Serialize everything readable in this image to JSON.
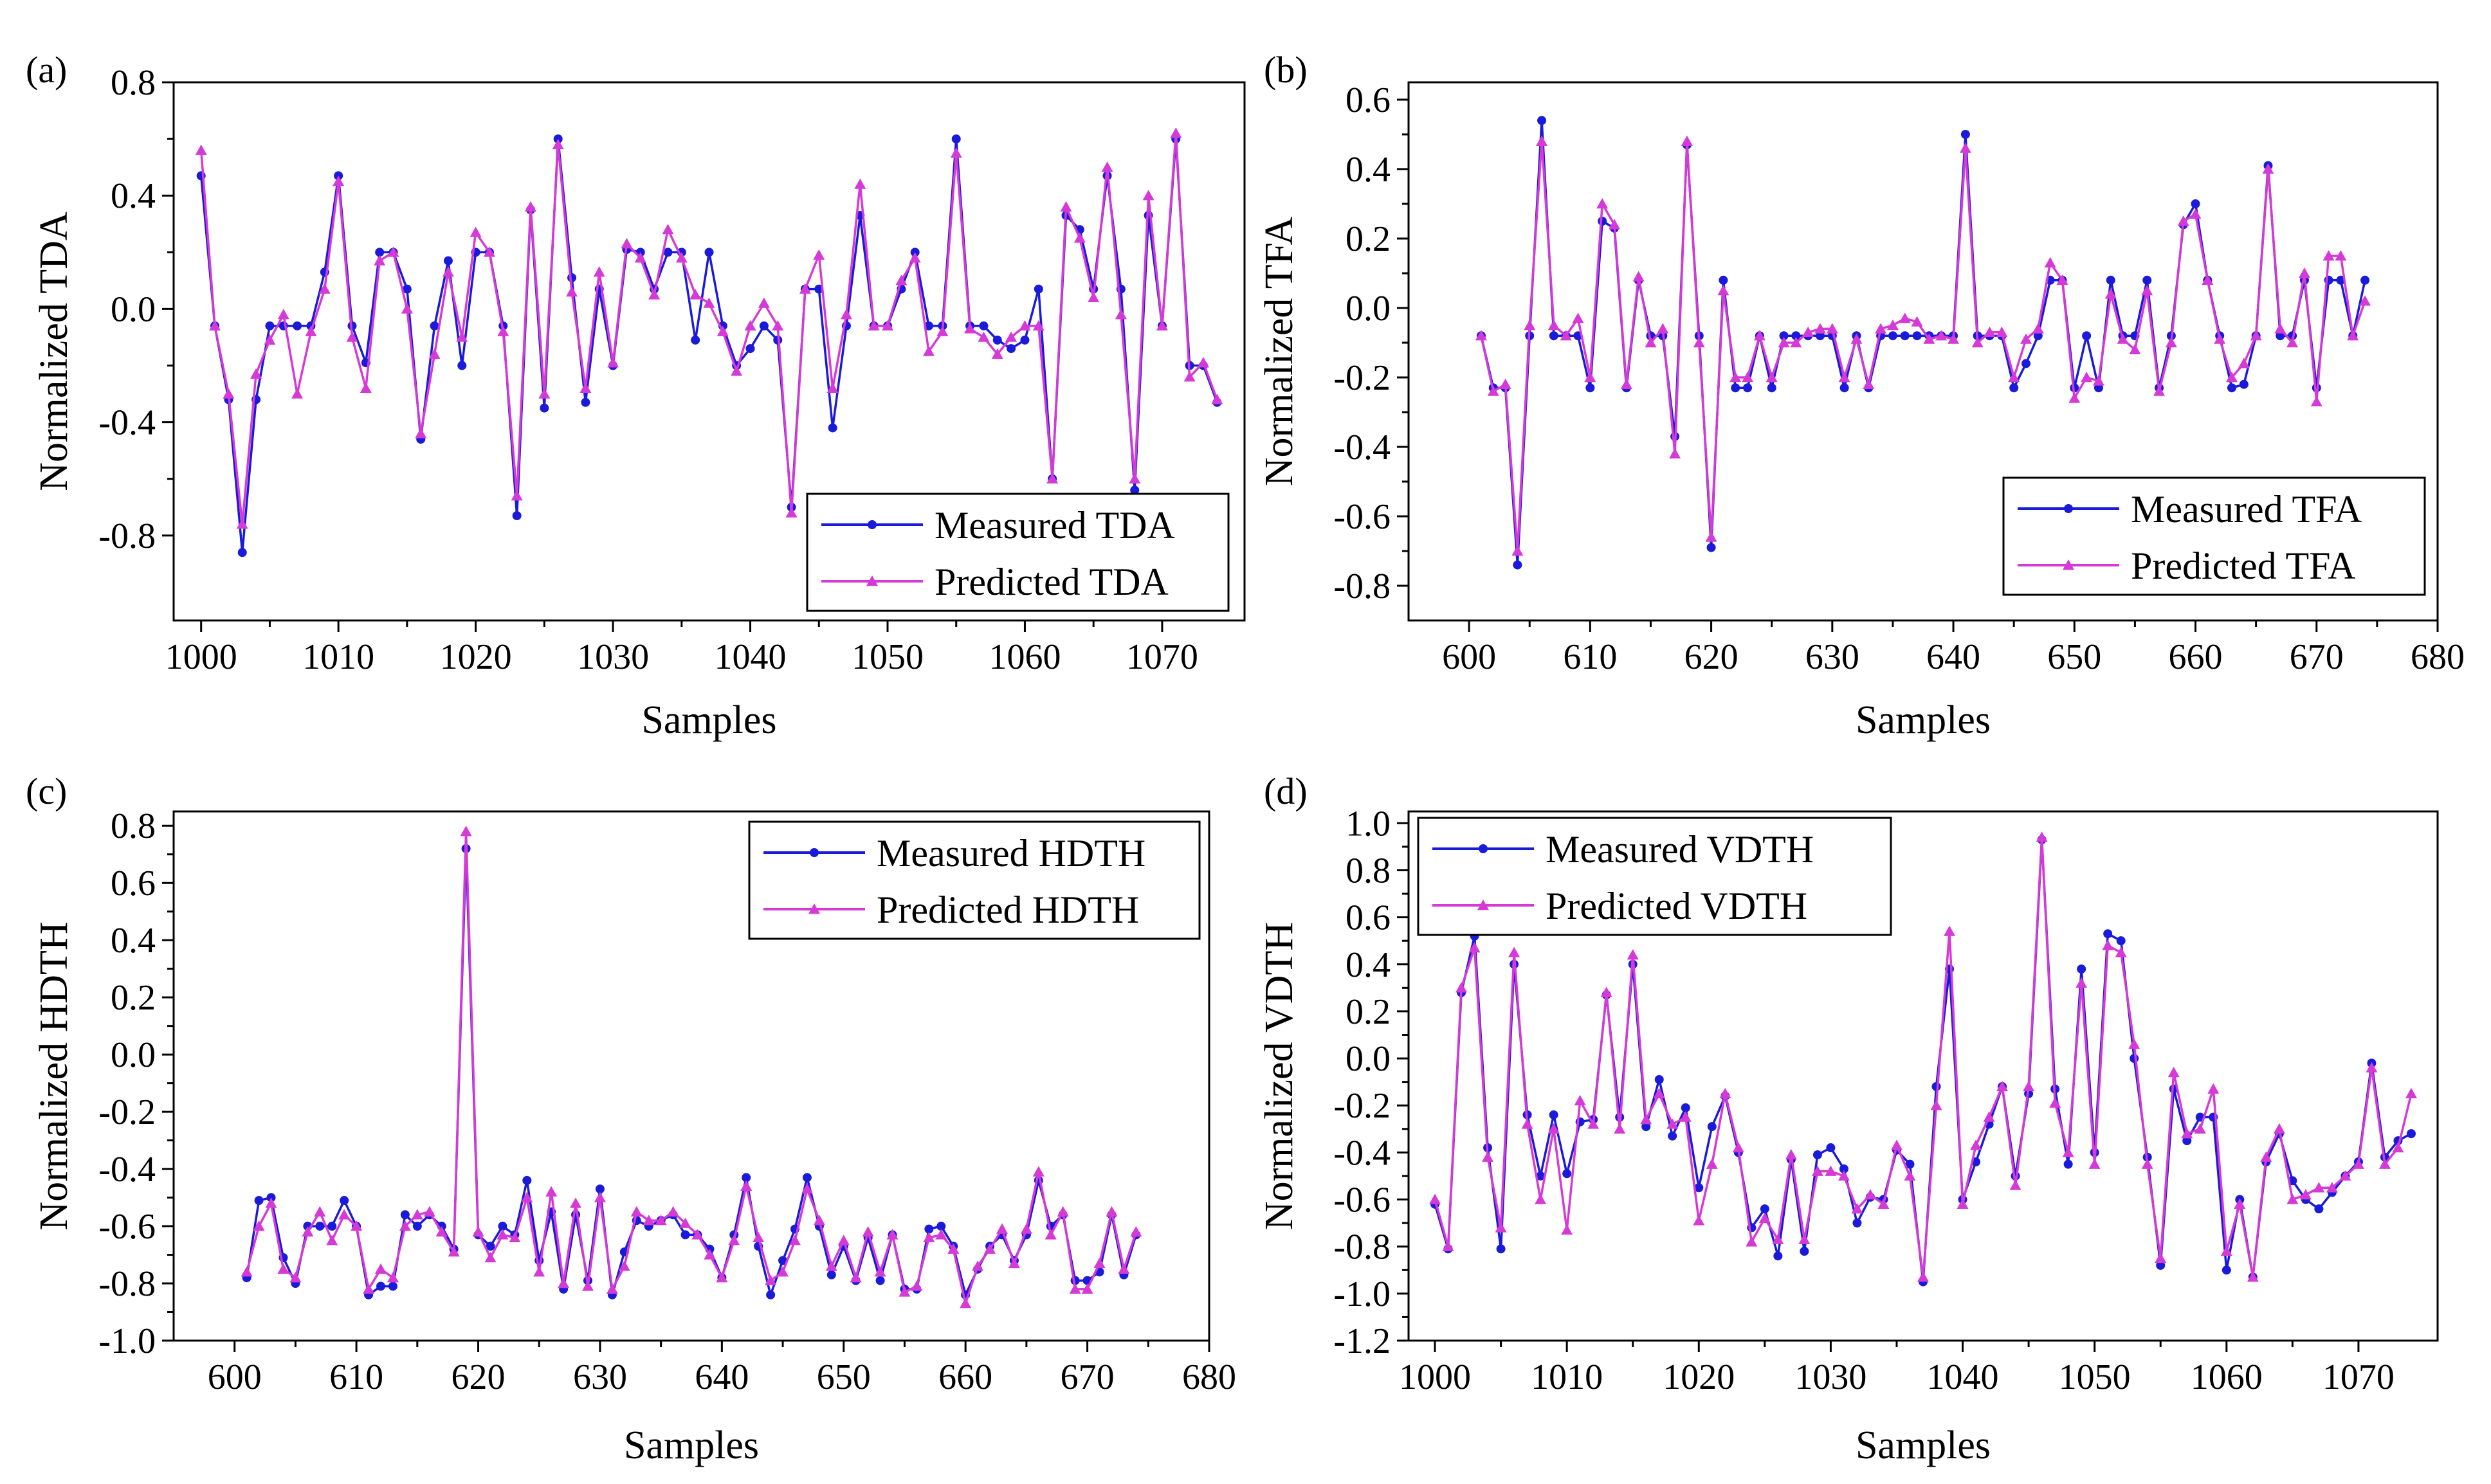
{
  "figure": {
    "colors": {
      "measured": "#1a1adb",
      "predicted": "#d63ad6"
    }
  },
  "chart_data": [
    {
      "type": "line",
      "panel_label": "(a)",
      "xlabel": "Samples",
      "ylabel": "Normalized TDA",
      "xlim": [
        998,
        1076
      ],
      "ylim": [
        -1.1,
        0.8
      ],
      "xticks": [
        1000,
        1010,
        1020,
        1030,
        1040,
        1050,
        1060,
        1070
      ],
      "yticks": [
        -0.8,
        -0.4,
        0.0,
        0.4,
        0.8
      ],
      "ytick_labels": [
        "-0.8",
        "-0.4",
        "0.0",
        "0.4",
        "0.8"
      ],
      "legend_position": "bottom-right",
      "x": [
        1000,
        1001,
        1002,
        1003,
        1004,
        1005,
        1006,
        1007,
        1008,
        1009,
        1010,
        1011,
        1012,
        1013,
        1014,
        1015,
        1016,
        1017,
        1018,
        1019,
        1020,
        1021,
        1022,
        1023,
        1024,
        1025,
        1026,
        1027,
        1028,
        1029,
        1030,
        1031,
        1032,
        1033,
        1034,
        1035,
        1036,
        1037,
        1038,
        1039,
        1040,
        1041,
        1042,
        1043,
        1044,
        1045,
        1046,
        1047,
        1048,
        1049,
        1050,
        1051,
        1052,
        1053,
        1054,
        1055,
        1056,
        1057,
        1058,
        1059,
        1060,
        1061,
        1062,
        1063,
        1064,
        1065,
        1066,
        1067,
        1068,
        1069,
        1070,
        1071,
        1072,
        1073,
        1074
      ],
      "series": [
        {
          "name": "Measured TDA",
          "marker": "circle",
          "values": [
            0.47,
            -0.06,
            -0.32,
            -0.86,
            -0.32,
            -0.06,
            -0.06,
            -0.06,
            -0.06,
            0.13,
            0.47,
            -0.06,
            -0.19,
            0.2,
            0.2,
            0.07,
            -0.46,
            -0.06,
            0.17,
            -0.2,
            0.2,
            0.2,
            -0.06,
            -0.73,
            0.35,
            -0.35,
            0.6,
            0.11,
            -0.33,
            0.07,
            -0.2,
            0.21,
            0.2,
            0.07,
            0.2,
            0.2,
            -0.11,
            0.2,
            -0.06,
            -0.2,
            -0.14,
            -0.06,
            -0.11,
            -0.7,
            0.07,
            0.07,
            -0.42,
            -0.06,
            0.33,
            -0.06,
            -0.06,
            0.07,
            0.2,
            -0.06,
            -0.06,
            0.6,
            -0.06,
            -0.06,
            -0.11,
            -0.14,
            -0.11,
            0.07,
            -0.6,
            0.33,
            0.28,
            0.07,
            0.47,
            0.07,
            -0.64,
            0.33,
            -0.06,
            0.6,
            -0.2,
            -0.2,
            -0.33
          ]
        },
        {
          "name": "Predicted TDA",
          "marker": "triangle",
          "values": [
            0.56,
            -0.06,
            -0.3,
            -0.76,
            -0.23,
            -0.11,
            -0.02,
            -0.3,
            -0.08,
            0.07,
            0.45,
            -0.1,
            -0.28,
            0.17,
            0.2,
            0.0,
            -0.44,
            -0.16,
            0.13,
            -0.1,
            0.27,
            0.2,
            -0.08,
            -0.66,
            0.36,
            -0.3,
            0.58,
            0.06,
            -0.28,
            0.13,
            -0.19,
            0.23,
            0.18,
            0.05,
            0.28,
            0.18,
            0.05,
            0.02,
            -0.08,
            -0.22,
            -0.06,
            0.02,
            -0.06,
            -0.72,
            0.07,
            0.19,
            -0.28,
            -0.02,
            0.44,
            -0.06,
            -0.06,
            0.1,
            0.18,
            -0.15,
            -0.08,
            0.55,
            -0.07,
            -0.1,
            -0.16,
            -0.1,
            -0.06,
            -0.06,
            -0.6,
            0.36,
            0.25,
            0.04,
            0.5,
            -0.02,
            -0.6,
            0.4,
            -0.06,
            0.62,
            -0.24,
            -0.19,
            -0.32
          ]
        }
      ]
    },
    {
      "type": "line",
      "panel_label": "(b)",
      "xlabel": "Samples",
      "ylabel": "Normalized TFA",
      "xlim": [
        595,
        680
      ],
      "ylim": [
        -0.9,
        0.65
      ],
      "xticks": [
        600,
        610,
        620,
        630,
        640,
        650,
        660,
        670,
        680
      ],
      "yticks": [
        -0.8,
        -0.6,
        -0.4,
        -0.2,
        0.0,
        0.2,
        0.4,
        0.6
      ],
      "ytick_labels": [
        "-0.8",
        "-0.6",
        "-0.4",
        "-0.2",
        "0.0",
        "0.2",
        "0.4",
        "0.6"
      ],
      "legend_position": "bottom-right",
      "x": [
        601,
        602,
        603,
        604,
        605,
        606,
        607,
        608,
        609,
        610,
        611,
        612,
        613,
        614,
        615,
        616,
        617,
        618,
        619,
        620,
        621,
        622,
        623,
        624,
        625,
        626,
        627,
        628,
        629,
        630,
        631,
        632,
        633,
        634,
        635,
        636,
        637,
        638,
        639,
        640,
        641,
        642,
        643,
        644,
        645,
        646,
        647,
        648,
        649,
        650,
        651,
        652,
        653,
        654,
        655,
        656,
        657,
        658,
        659,
        660,
        661,
        662,
        663,
        664,
        665,
        666,
        667,
        668,
        669,
        670,
        671,
        672,
        673,
        674
      ],
      "series": [
        {
          "name": "Measured TFA",
          "marker": "circle",
          "values": [
            -0.08,
            -0.23,
            -0.23,
            -0.74,
            -0.08,
            0.54,
            -0.08,
            -0.08,
            -0.08,
            -0.23,
            0.25,
            0.23,
            -0.23,
            0.08,
            -0.08,
            -0.08,
            -0.37,
            0.47,
            -0.08,
            -0.69,
            0.08,
            -0.23,
            -0.23,
            -0.08,
            -0.23,
            -0.08,
            -0.08,
            -0.08,
            -0.08,
            -0.08,
            -0.23,
            -0.08,
            -0.23,
            -0.08,
            -0.08,
            -0.08,
            -0.08,
            -0.08,
            -0.08,
            -0.08,
            0.5,
            -0.08,
            -0.08,
            -0.08,
            -0.23,
            -0.16,
            -0.08,
            0.08,
            0.08,
            -0.23,
            -0.08,
            -0.23,
            0.08,
            -0.08,
            -0.08,
            0.08,
            -0.23,
            -0.08,
            0.24,
            0.3,
            0.08,
            -0.08,
            -0.23,
            -0.22,
            -0.08,
            0.41,
            -0.08,
            -0.08,
            0.08,
            -0.23,
            0.08,
            0.08,
            -0.08,
            0.08
          ]
        },
        {
          "name": "Predicted TFA",
          "marker": "triangle",
          "values": [
            -0.08,
            -0.24,
            -0.22,
            -0.7,
            -0.05,
            0.48,
            -0.05,
            -0.08,
            -0.03,
            -0.2,
            0.3,
            0.24,
            -0.22,
            0.09,
            -0.1,
            -0.06,
            -0.42,
            0.48,
            -0.1,
            -0.66,
            0.05,
            -0.2,
            -0.2,
            -0.08,
            -0.2,
            -0.1,
            -0.1,
            -0.07,
            -0.06,
            -0.06,
            -0.2,
            -0.09,
            -0.22,
            -0.06,
            -0.05,
            -0.03,
            -0.04,
            -0.09,
            -0.08,
            -0.09,
            0.46,
            -0.1,
            -0.07,
            -0.07,
            -0.2,
            -0.09,
            -0.06,
            0.13,
            0.08,
            -0.26,
            -0.2,
            -0.21,
            0.04,
            -0.09,
            -0.12,
            0.05,
            -0.24,
            -0.1,
            0.25,
            0.27,
            0.08,
            -0.09,
            -0.2,
            -0.16,
            -0.08,
            0.4,
            -0.06,
            -0.1,
            0.1,
            -0.27,
            0.15,
            0.15,
            -0.08,
            0.02
          ]
        }
      ]
    },
    {
      "type": "line",
      "panel_label": "(c)",
      "xlabel": "Samples",
      "ylabel": "Normalized HDTH",
      "xlim": [
        595,
        680
      ],
      "ylim": [
        -1.0,
        0.85
      ],
      "xticks": [
        600,
        610,
        620,
        630,
        640,
        650,
        660,
        670,
        680
      ],
      "yticks": [
        -1.0,
        -0.8,
        -0.6,
        -0.4,
        -0.2,
        0.0,
        0.2,
        0.4,
        0.6,
        0.8
      ],
      "ytick_labels": [
        "-1.0",
        "-0.8",
        "-0.6",
        "-0.4",
        "-0.2",
        "0.0",
        "0.2",
        "0.4",
        "0.6",
        "0.8"
      ],
      "legend_position": "top-right",
      "x": [
        601,
        602,
        603,
        604,
        605,
        606,
        607,
        608,
        609,
        610,
        611,
        612,
        613,
        614,
        615,
        616,
        617,
        618,
        619,
        620,
        621,
        622,
        623,
        624,
        625,
        626,
        627,
        628,
        629,
        630,
        631,
        632,
        633,
        634,
        635,
        636,
        637,
        638,
        639,
        640,
        641,
        642,
        643,
        644,
        645,
        646,
        647,
        648,
        649,
        650,
        651,
        652,
        653,
        654,
        655,
        656,
        657,
        658,
        659,
        660,
        661,
        662,
        663,
        664,
        665,
        666,
        667,
        668,
        669,
        670,
        671,
        672,
        673,
        674
      ],
      "series": [
        {
          "name": "Measured HDTH",
          "marker": "circle",
          "values": [
            -0.78,
            -0.51,
            -0.5,
            -0.71,
            -0.8,
            -0.6,
            -0.6,
            -0.6,
            -0.51,
            -0.6,
            -0.84,
            -0.81,
            -0.81,
            -0.56,
            -0.6,
            -0.56,
            -0.6,
            -0.68,
            0.72,
            -0.63,
            -0.67,
            -0.6,
            -0.63,
            -0.44,
            -0.72,
            -0.55,
            -0.82,
            -0.56,
            -0.79,
            -0.47,
            -0.84,
            -0.69,
            -0.58,
            -0.6,
            -0.58,
            -0.56,
            -0.63,
            -0.63,
            -0.68,
            -0.78,
            -0.63,
            -0.43,
            -0.67,
            -0.84,
            -0.72,
            -0.61,
            -0.43,
            -0.6,
            -0.77,
            -0.67,
            -0.79,
            -0.64,
            -0.79,
            -0.63,
            -0.82,
            -0.82,
            -0.61,
            -0.6,
            -0.67,
            -0.84,
            -0.75,
            -0.67,
            -0.63,
            -0.72,
            -0.63,
            -0.44,
            -0.6,
            -0.56,
            -0.79,
            -0.79,
            -0.76,
            -0.56,
            -0.77,
            -0.63
          ]
        },
        {
          "name": "Predicted HDTH",
          "marker": "triangle",
          "values": [
            -0.76,
            -0.6,
            -0.52,
            -0.75,
            -0.78,
            -0.62,
            -0.55,
            -0.65,
            -0.56,
            -0.6,
            -0.82,
            -0.75,
            -0.78,
            -0.6,
            -0.56,
            -0.55,
            -0.62,
            -0.69,
            0.78,
            -0.62,
            -0.71,
            -0.63,
            -0.64,
            -0.5,
            -0.76,
            -0.48,
            -0.8,
            -0.52,
            -0.81,
            -0.5,
            -0.82,
            -0.74,
            -0.55,
            -0.58,
            -0.58,
            -0.55,
            -0.59,
            -0.63,
            -0.7,
            -0.78,
            -0.65,
            -0.46,
            -0.64,
            -0.79,
            -0.76,
            -0.65,
            -0.47,
            -0.58,
            -0.74,
            -0.65,
            -0.78,
            -0.62,
            -0.76,
            -0.63,
            -0.83,
            -0.81,
            -0.64,
            -0.63,
            -0.68,
            -0.87,
            -0.74,
            -0.68,
            -0.61,
            -0.73,
            -0.61,
            -0.41,
            -0.63,
            -0.55,
            -0.82,
            -0.82,
            -0.73,
            -0.55,
            -0.75,
            -0.62
          ]
        }
      ]
    },
    {
      "type": "line",
      "panel_label": "(d)",
      "xlabel": "Samples",
      "ylabel": "Normalized VDTH",
      "xlim": [
        998,
        1076
      ],
      "ylim": [
        -1.2,
        1.05
      ],
      "xticks": [
        1000,
        1010,
        1020,
        1030,
        1040,
        1050,
        1060,
        1070
      ],
      "yticks": [
        -1.2,
        -1.0,
        -0.8,
        -0.6,
        -0.4,
        -0.2,
        0.0,
        0.2,
        0.4,
        0.6,
        0.8,
        1.0
      ],
      "ytick_labels": [
        "-1.2",
        "-1.0",
        "-0.8",
        "-0.6",
        "-0.4",
        "-0.2",
        "0.0",
        "0.2",
        "0.4",
        "0.6",
        "0.8",
        "1.0"
      ],
      "legend_position": "top-left",
      "x": [
        1000,
        1001,
        1002,
        1003,
        1004,
        1005,
        1006,
        1007,
        1008,
        1009,
        1010,
        1011,
        1012,
        1013,
        1014,
        1015,
        1016,
        1017,
        1018,
        1019,
        1020,
        1021,
        1022,
        1023,
        1024,
        1025,
        1026,
        1027,
        1028,
        1029,
        1030,
        1031,
        1032,
        1033,
        1034,
        1035,
        1036,
        1037,
        1038,
        1039,
        1040,
        1041,
        1042,
        1043,
        1044,
        1045,
        1046,
        1047,
        1048,
        1049,
        1050,
        1051,
        1052,
        1053,
        1054,
        1055,
        1056,
        1057,
        1058,
        1059,
        1060,
        1061,
        1062,
        1063,
        1064,
        1065,
        1066,
        1067,
        1068,
        1069,
        1070,
        1071,
        1072,
        1073,
        1074
      ],
      "series": [
        {
          "name": "Measured VDTH",
          "marker": "circle",
          "values": [
            -0.62,
            -0.81,
            0.28,
            0.52,
            -0.38,
            -0.81,
            0.4,
            -0.24,
            -0.5,
            -0.24,
            -0.49,
            -0.27,
            -0.26,
            0.27,
            -0.25,
            0.4,
            -0.29,
            -0.09,
            -0.33,
            -0.21,
            -0.55,
            -0.29,
            -0.16,
            -0.4,
            -0.72,
            -0.64,
            -0.84,
            -0.43,
            -0.82,
            -0.41,
            -0.38,
            -0.47,
            -0.7,
            -0.59,
            -0.6,
            -0.39,
            -0.45,
            -0.95,
            -0.12,
            0.38,
            -0.6,
            -0.44,
            -0.28,
            -0.12,
            -0.5,
            -0.15,
            0.93,
            -0.13,
            -0.45,
            0.38,
            -0.4,
            0.53,
            0.5,
            0.0,
            -0.42,
            -0.88,
            -0.13,
            -0.35,
            -0.25,
            -0.25,
            -0.9,
            -0.6,
            -0.93,
            -0.44,
            -0.32,
            -0.52,
            -0.6,
            -0.64,
            -0.57,
            -0.5,
            -0.44,
            -0.02,
            -0.42,
            -0.35,
            -0.32
          ]
        },
        {
          "name": "Predicted VDTH",
          "marker": "triangle",
          "values": [
            -0.6,
            -0.8,
            0.3,
            0.47,
            -0.42,
            -0.72,
            0.45,
            -0.28,
            -0.6,
            -0.3,
            -0.73,
            -0.18,
            -0.28,
            0.28,
            -0.3,
            0.44,
            -0.26,
            -0.15,
            -0.28,
            -0.25,
            -0.69,
            -0.45,
            -0.15,
            -0.38,
            -0.78,
            -0.68,
            -0.77,
            -0.41,
            -0.77,
            -0.48,
            -0.48,
            -0.5,
            -0.64,
            -0.58,
            -0.62,
            -0.37,
            -0.5,
            -0.93,
            -0.2,
            0.54,
            -0.62,
            -0.37,
            -0.25,
            -0.12,
            -0.54,
            -0.12,
            0.94,
            -0.19,
            -0.4,
            0.32,
            -0.45,
            0.48,
            0.45,
            0.06,
            -0.45,
            -0.85,
            -0.06,
            -0.32,
            -0.3,
            -0.13,
            -0.82,
            -0.62,
            -0.93,
            -0.42,
            -0.3,
            -0.6,
            -0.58,
            -0.55,
            -0.55,
            -0.5,
            -0.45,
            -0.04,
            -0.45,
            -0.38,
            -0.15
          ]
        }
      ]
    }
  ]
}
